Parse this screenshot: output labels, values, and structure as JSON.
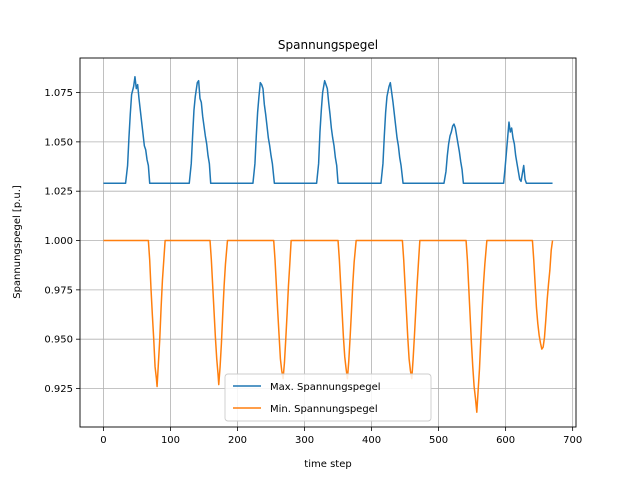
{
  "chart_data": {
    "type": "line",
    "title": "Spannungspegel",
    "xlabel": "time step",
    "ylabel": "Spannungspegel [p.u.]",
    "xlim": [
      -35,
      705
    ],
    "ylim": [
      0.9055,
      1.0925
    ],
    "xticks": [
      0,
      100,
      200,
      300,
      400,
      500,
      600,
      700
    ],
    "xtick_labels": [
      "0",
      "100",
      "200",
      "300",
      "400",
      "500",
      "600",
      "700"
    ],
    "yticks": [
      0.925,
      0.95,
      0.975,
      1.0,
      1.025,
      1.05,
      1.075
    ],
    "ytick_labels": [
      "0.925",
      "0.950",
      "0.975",
      "1.000",
      "1.025",
      "1.050",
      "1.075"
    ],
    "grid": true,
    "legend": "lower-center",
    "series": [
      {
        "name": "Max. Spannungspegel",
        "color": "#1f77b4",
        "points": [
          [
            0,
            1.029
          ],
          [
            33,
            1.029
          ],
          [
            36,
            1.038
          ],
          [
            38,
            1.052
          ],
          [
            40,
            1.064
          ],
          [
            42,
            1.074
          ],
          [
            45,
            1.078
          ],
          [
            47,
            1.083
          ],
          [
            49,
            1.077
          ],
          [
            51,
            1.079
          ],
          [
            53,
            1.072
          ],
          [
            55,
            1.066
          ],
          [
            57,
            1.06
          ],
          [
            59,
            1.054
          ],
          [
            61,
            1.048
          ],
          [
            63,
            1.046
          ],
          [
            65,
            1.041
          ],
          [
            67,
            1.038
          ],
          [
            69,
            1.029
          ],
          [
            128,
            1.029
          ],
          [
            131,
            1.039
          ],
          [
            133,
            1.053
          ],
          [
            135,
            1.066
          ],
          [
            137,
            1.073
          ],
          [
            140,
            1.08
          ],
          [
            142,
            1.081
          ],
          [
            144,
            1.072
          ],
          [
            146,
            1.07
          ],
          [
            148,
            1.063
          ],
          [
            150,
            1.058
          ],
          [
            152,
            1.053
          ],
          [
            154,
            1.049
          ],
          [
            156,
            1.043
          ],
          [
            158,
            1.039
          ],
          [
            160,
            1.029
          ],
          [
            223,
            1.029
          ],
          [
            226,
            1.039
          ],
          [
            228,
            1.053
          ],
          [
            230,
            1.065
          ],
          [
            232,
            1.073
          ],
          [
            234,
            1.08
          ],
          [
            236,
            1.079
          ],
          [
            238,
            1.077
          ],
          [
            240,
            1.069
          ],
          [
            242,
            1.064
          ],
          [
            244,
            1.058
          ],
          [
            246,
            1.052
          ],
          [
            248,
            1.048
          ],
          [
            250,
            1.043
          ],
          [
            252,
            1.039
          ],
          [
            255,
            1.029
          ],
          [
            318,
            1.029
          ],
          [
            321,
            1.039
          ],
          [
            323,
            1.055
          ],
          [
            325,
            1.066
          ],
          [
            327,
            1.075
          ],
          [
            330,
            1.081
          ],
          [
            332,
            1.079
          ],
          [
            334,
            1.077
          ],
          [
            336,
            1.07
          ],
          [
            338,
            1.064
          ],
          [
            340,
            1.057
          ],
          [
            342,
            1.052
          ],
          [
            344,
            1.048
          ],
          [
            346,
            1.042
          ],
          [
            348,
            1.038
          ],
          [
            350,
            1.029
          ],
          [
            414,
            1.029
          ],
          [
            417,
            1.039
          ],
          [
            419,
            1.053
          ],
          [
            421,
            1.065
          ],
          [
            423,
            1.073
          ],
          [
            426,
            1.078
          ],
          [
            428,
            1.08
          ],
          [
            430,
            1.075
          ],
          [
            432,
            1.07
          ],
          [
            434,
            1.064
          ],
          [
            436,
            1.058
          ],
          [
            438,
            1.052
          ],
          [
            440,
            1.048
          ],
          [
            442,
            1.042
          ],
          [
            444,
            1.038
          ],
          [
            447,
            1.029
          ],
          [
            508,
            1.029
          ],
          [
            511,
            1.035
          ],
          [
            513,
            1.043
          ],
          [
            515,
            1.049
          ],
          [
            517,
            1.053
          ],
          [
            519,
            1.055
          ],
          [
            521,
            1.058
          ],
          [
            523,
            1.059
          ],
          [
            525,
            1.057
          ],
          [
            527,
            1.053
          ],
          [
            529,
            1.049
          ],
          [
            531,
            1.045
          ],
          [
            533,
            1.04
          ],
          [
            535,
            1.036
          ],
          [
            537,
            1.029
          ],
          [
            597,
            1.029
          ],
          [
            599,
            1.036
          ],
          [
            601,
            1.044
          ],
          [
            603,
            1.052
          ],
          [
            605,
            1.06
          ],
          [
            607,
            1.055
          ],
          [
            609,
            1.057
          ],
          [
            611,
            1.052
          ],
          [
            613,
            1.049
          ],
          [
            615,
            1.043
          ],
          [
            617,
            1.039
          ],
          [
            619,
            1.035
          ],
          [
            621,
            1.031
          ],
          [
            623,
            1.03
          ],
          [
            625,
            1.034
          ],
          [
            627,
            1.038
          ],
          [
            629,
            1.031
          ],
          [
            631,
            1.029
          ],
          [
            670,
            1.029
          ]
        ]
      },
      {
        "name": "Min. Spannungspegel",
        "color": "#ff7f0e",
        "points": [
          [
            0,
            1.0
          ],
          [
            67,
            1.0
          ],
          [
            69,
            0.99
          ],
          [
            71,
            0.975
          ],
          [
            73,
            0.962
          ],
          [
            75,
            0.95
          ],
          [
            77,
            0.936
          ],
          [
            79,
            0.93
          ],
          [
            80,
            0.926
          ],
          [
            82,
            0.938
          ],
          [
            84,
            0.95
          ],
          [
            86,
            0.966
          ],
          [
            88,
            0.98
          ],
          [
            90,
            0.99
          ],
          [
            92,
            1.0
          ],
          [
            159,
            1.0
          ],
          [
            161,
            0.99
          ],
          [
            163,
            0.977
          ],
          [
            165,
            0.964
          ],
          [
            167,
            0.951
          ],
          [
            169,
            0.94
          ],
          [
            171,
            0.932
          ],
          [
            172,
            0.927
          ],
          [
            174,
            0.936
          ],
          [
            176,
            0.948
          ],
          [
            178,
            0.963
          ],
          [
            180,
            0.977
          ],
          [
            182,
            0.988
          ],
          [
            185,
            1.0
          ],
          [
            254,
            1.0
          ],
          [
            256,
            0.99
          ],
          [
            258,
            0.977
          ],
          [
            260,
            0.964
          ],
          [
            262,
            0.952
          ],
          [
            264,
            0.94
          ],
          [
            266,
            0.934
          ],
          [
            268,
            0.93
          ],
          [
            270,
            0.938
          ],
          [
            272,
            0.95
          ],
          [
            274,
            0.963
          ],
          [
            276,
            0.977
          ],
          [
            278,
            0.988
          ],
          [
            280,
            1.0
          ],
          [
            350,
            1.0
          ],
          [
            352,
            0.99
          ],
          [
            354,
            0.977
          ],
          [
            356,
            0.964
          ],
          [
            358,
            0.951
          ],
          [
            360,
            0.941
          ],
          [
            362,
            0.935
          ],
          [
            364,
            0.93
          ],
          [
            366,
            0.939
          ],
          [
            368,
            0.951
          ],
          [
            370,
            0.964
          ],
          [
            372,
            0.978
          ],
          [
            374,
            0.989
          ],
          [
            377,
            1.0
          ],
          [
            446,
            1.0
          ],
          [
            448,
            0.99
          ],
          [
            450,
            0.977
          ],
          [
            452,
            0.964
          ],
          [
            454,
            0.951
          ],
          [
            456,
            0.94
          ],
          [
            458,
            0.934
          ],
          [
            460,
            0.93
          ],
          [
            462,
            0.94
          ],
          [
            464,
            0.952
          ],
          [
            466,
            0.965
          ],
          [
            468,
            0.978
          ],
          [
            470,
            0.989
          ],
          [
            472,
            1.0
          ],
          [
            541,
            1.0
          ],
          [
            543,
            0.99
          ],
          [
            545,
            0.976
          ],
          [
            547,
            0.962
          ],
          [
            549,
            0.948
          ],
          [
            551,
            0.936
          ],
          [
            553,
            0.926
          ],
          [
            555,
            0.92
          ],
          [
            557,
            0.913
          ],
          [
            559,
            0.924
          ],
          [
            561,
            0.935
          ],
          [
            563,
            0.95
          ],
          [
            565,
            0.965
          ],
          [
            567,
            0.978
          ],
          [
            569,
            0.988
          ],
          [
            572,
            1.0
          ],
          [
            640,
            1.0
          ],
          [
            642,
            0.99
          ],
          [
            644,
            0.978
          ],
          [
            646,
            0.966
          ],
          [
            648,
            0.958
          ],
          [
            650,
            0.952
          ],
          [
            652,
            0.948
          ],
          [
            654,
            0.945
          ],
          [
            656,
            0.946
          ],
          [
            658,
            0.951
          ],
          [
            660,
            0.96
          ],
          [
            662,
            0.97
          ],
          [
            664,
            0.978
          ],
          [
            666,
            0.985
          ],
          [
            668,
            0.995
          ],
          [
            670,
            1.0
          ]
        ]
      }
    ]
  }
}
